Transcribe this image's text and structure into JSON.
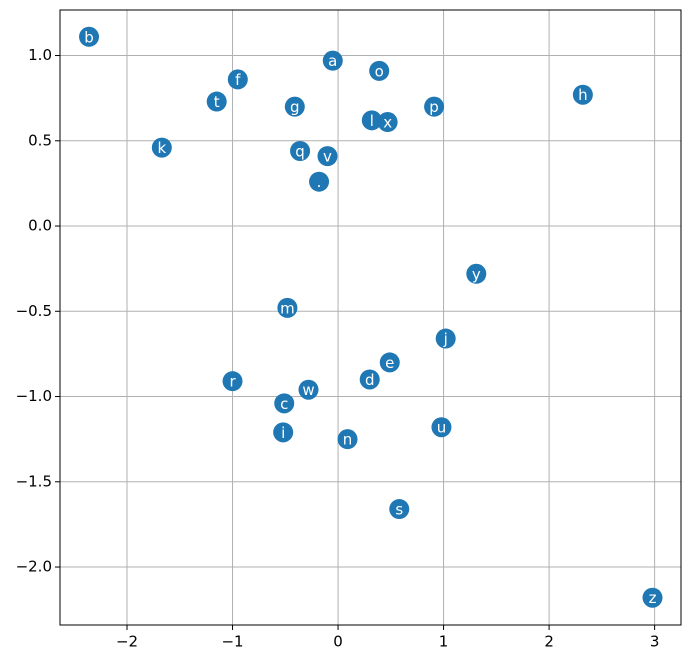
{
  "chart_data": {
    "type": "scatter",
    "x": [
      -2.36,
      -0.05,
      0.39,
      -0.95,
      -1.15,
      -0.41,
      0.91,
      2.32,
      0.32,
      0.47,
      -1.67,
      -0.36,
      -0.1,
      -0.18,
      1.31,
      -0.48,
      1.02,
      0.49,
      0.3,
      -1.0,
      -0.28,
      -0.51,
      -0.52,
      0.09,
      0.98,
      0.58,
      2.98
    ],
    "series": [
      {
        "color": "#1f77b4",
        "values": [
          1.11,
          0.97,
          0.91,
          0.86,
          0.73,
          0.7,
          0.7,
          0.77,
          0.62,
          0.61,
          0.46,
          0.44,
          0.41,
          0.26,
          -0.28,
          -0.48,
          -0.66,
          -0.8,
          -0.9,
          -0.91,
          -0.96,
          -1.04,
          -1.21,
          -1.25,
          -1.18,
          -1.66,
          -2.18
        ],
        "labels": [
          "b",
          "a",
          "o",
          "f",
          "t",
          "g",
          "p",
          "h",
          "l",
          "x",
          "k",
          "q",
          "v",
          ".",
          "y",
          "m",
          "j",
          "e",
          "d",
          "r",
          "w",
          "c",
          "i",
          "n",
          "u",
          "s",
          "z"
        ]
      }
    ],
    "xlim": [
      -2.635,
      3.25
    ],
    "ylim": [
      -2.34,
      1.267
    ],
    "xticks": [
      {
        "value": -2,
        "label": "−2"
      },
      {
        "value": -1,
        "label": "−1"
      },
      0,
      1,
      2,
      3
    ],
    "yticks": [
      {
        "value": 1,
        "label": "1.0"
      },
      0.5,
      {
        "value": 0,
        "label": "0.0"
      },
      {
        "value": -0.5,
        "label": "−0.5"
      },
      {
        "value": -1,
        "label": "−1.0"
      },
      {
        "value": -1.5,
        "label": "−1.5"
      },
      {
        "value": -2,
        "label": "−2.0"
      }
    ],
    "grid": true
  }
}
